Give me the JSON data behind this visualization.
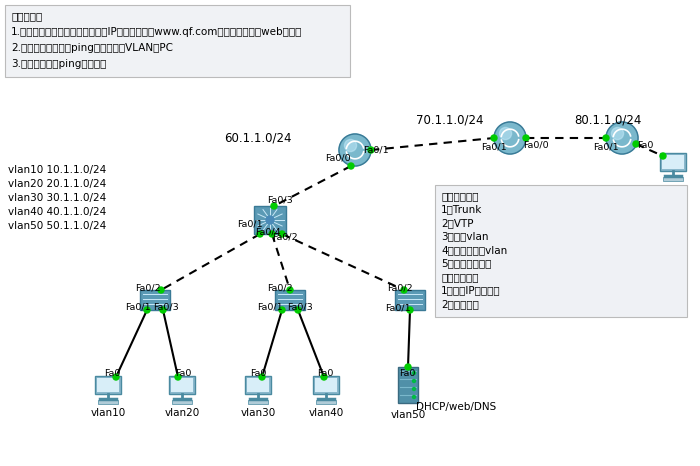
{
  "bg_color": "#ffffff",
  "header_text": [
    "实验要求：",
    "1.员工开机后，可以直接自动获取IP，并可以通过www.qf.com访问公司自己的web服务器",
    "2.测试员工是否可以ping通其他所有VLAN的PC",
    "3.所有员工可以ping通外网！"
  ],
  "vlan_info": [
    "vlan10 10.1.1.0/24",
    "vlan20 20.1.1.0/24",
    "vlan30 30.1.1.0/24",
    "vlan40 40.1.1.0/24",
    "vlan50 50.1.1.0/24"
  ],
  "instruction_box": [
    "一、交换部分",
    "1）Trunk",
    "2）VTP",
    "3）创建vlan",
    "4）分配端口到vlan",
    "5）起三层虚接口",
    "二、路由部分",
    "1）配置IP，并开启",
    "2）配置路由"
  ],
  "line_color": "#000000",
  "dot_color": "#00cc00",
  "router_color": "#7ab8cc",
  "switch_color": "#5b9ab5",
  "pc_color": "#8ab8cc",
  "server_color": "#5090a8"
}
